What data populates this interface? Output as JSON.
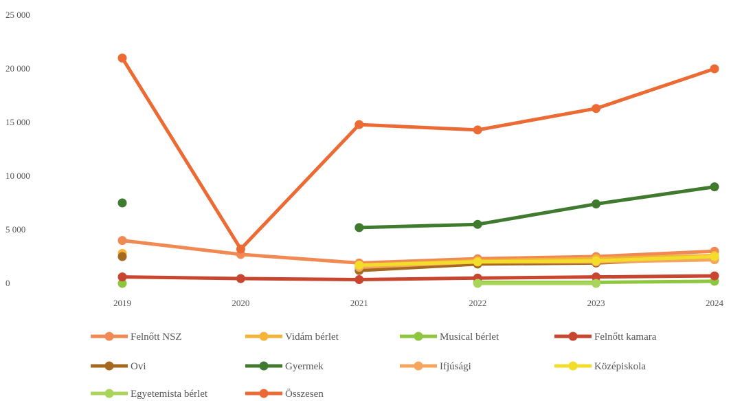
{
  "chart_data": {
    "type": "line",
    "x": [
      "2019",
      "2020",
      "2021",
      "2022",
      "2023",
      "2024"
    ],
    "ylim": [
      0,
      25000
    ],
    "y_ticks": [
      0,
      5000,
      10000,
      15000,
      20000,
      25000
    ],
    "y_tick_labels": [
      "0",
      "5 000",
      "10 000",
      "15 000",
      "20 000",
      "25 000"
    ],
    "grid": false,
    "legend_position": "bottom",
    "series": [
      {
        "name": "Felnőtt NSZ",
        "color": "#f08a52",
        "values": [
          4000,
          2700,
          1900,
          2300,
          2500,
          3000
        ]
      },
      {
        "name": "Vidám bérlet",
        "color": "#f3b43a",
        "values": [
          2800,
          null,
          1700,
          2100,
          2300,
          2600
        ]
      },
      {
        "name": "Musical bérlet",
        "color": "#8ec63f",
        "values": [
          0,
          null,
          null,
          100,
          100,
          200
        ]
      },
      {
        "name": "Felnőtt kamara",
        "color": "#c8452f",
        "values": [
          600,
          450,
          350,
          500,
          600,
          700
        ]
      },
      {
        "name": "Ovi",
        "color": "#a5691f",
        "values": [
          2500,
          null,
          1200,
          1800,
          1900,
          2400
        ]
      },
      {
        "name": "Gyermek",
        "color": "#3f7a2e",
        "values": [
          7500,
          null,
          5200,
          5500,
          7400,
          9000
        ]
      },
      {
        "name": "Ifjúsági",
        "color": "#f4a65c",
        "values": [
          null,
          null,
          1500,
          2000,
          2000,
          2200
        ]
      },
      {
        "name": "Középiskola",
        "color": "#f2dd2b",
        "values": [
          null,
          null,
          1700,
          2000,
          2100,
          2500
        ]
      },
      {
        "name": "Egyetemista bérlet",
        "color": "#a9d65a",
        "values": [
          null,
          null,
          null,
          0,
          0,
          null
        ]
      },
      {
        "name": "Összesen",
        "color": "#ec6b34",
        "values": [
          21000,
          3200,
          14800,
          14300,
          16300,
          20000
        ]
      }
    ]
  }
}
